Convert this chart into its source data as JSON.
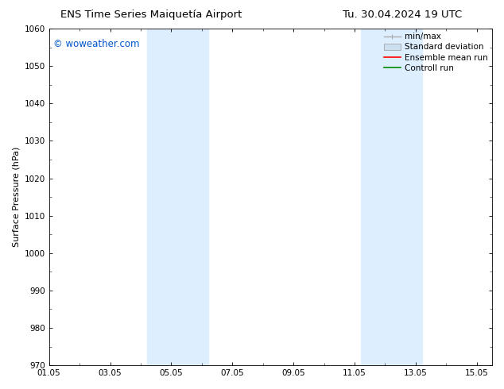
{
  "title_left": "ENS Time Series Maiquetía Airport",
  "title_right": "Tu. 30.04.2024 19 UTC",
  "ylabel": "Surface Pressure (hPa)",
  "xlabel": "",
  "ylim": [
    970,
    1060
  ],
  "yticks": [
    970,
    980,
    990,
    1000,
    1010,
    1020,
    1030,
    1040,
    1050,
    1060
  ],
  "xlim_start": 0,
  "xlim_end": 14.5,
  "xtick_labels": [
    "01.05",
    "03.05",
    "05.05",
    "07.05",
    "09.05",
    "11.05",
    "13.05",
    "15.05"
  ],
  "xtick_positions": [
    0,
    2,
    4,
    6,
    8,
    10,
    12,
    14
  ],
  "shaded_bands": [
    {
      "x_start": 3.2,
      "x_end": 5.2,
      "color": "#ddeeff"
    },
    {
      "x_start": 10.2,
      "x_end": 12.2,
      "color": "#ddeeff"
    }
  ],
  "watermark_text": "© woweather.com",
  "watermark_color": "#0055cc",
  "background_color": "#ffffff",
  "legend_items": [
    {
      "label": "min/max",
      "type": "minmax",
      "color": "#aaaaaa"
    },
    {
      "label": "Standard deviation",
      "type": "patch",
      "color": "#cce0f0"
    },
    {
      "label": "Ensemble mean run",
      "type": "line",
      "color": "#ff0000"
    },
    {
      "label": "Controll run",
      "type": "line",
      "color": "#008800"
    }
  ],
  "title_fontsize": 9.5,
  "axis_label_fontsize": 8,
  "tick_fontsize": 7.5,
  "watermark_fontsize": 8.5,
  "legend_fontsize": 7.5
}
